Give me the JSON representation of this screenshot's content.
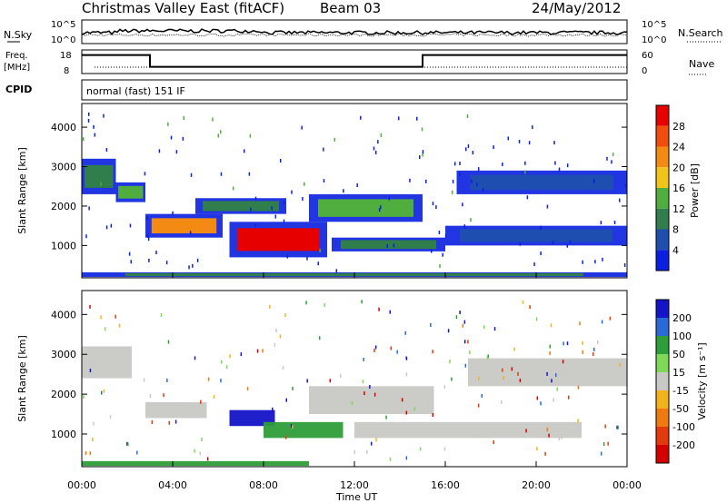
{
  "header": {
    "station_title": "Christmas Valley East (fitACF)",
    "beam": "Beam 03",
    "date": "24/May/2012"
  },
  "noise_panel": {
    "left_label": "N.Sky",
    "right_label": "N.Search",
    "left_ticks": [
      "10^5",
      "10^0"
    ],
    "right_ticks": [
      "10^5",
      "10^0"
    ]
  },
  "freq_panel": {
    "left_label": "Freq.",
    "left_unit": "[MHz]",
    "right_label": "Nave",
    "left_ticks": [
      "18",
      "8"
    ],
    "right_ticks": [
      "60",
      "0"
    ],
    "freq_steps_mhz": [
      {
        "from_h": 0,
        "to_h": 3,
        "value": 17
      },
      {
        "from_h": 3,
        "to_h": 15,
        "value": 12
      },
      {
        "from_h": 15,
        "to_h": 24,
        "value": 17
      }
    ]
  },
  "cpid": {
    "label": "CPID",
    "mode": "normal (fast) 151 IF"
  },
  "time_axis": {
    "label": "Time UT",
    "ticks": [
      "00:00",
      "04:00",
      "08:00",
      "12:00",
      "16:00",
      "20:00",
      "00:00"
    ]
  },
  "range_axis": {
    "label": "Slant Range [km]",
    "ticks": [
      "1000",
      "2000",
      "3000",
      "4000"
    ]
  },
  "power_colorbar": {
    "label": "Power [dB]",
    "ticks": [
      "4",
      "8",
      "12",
      "16",
      "20",
      "24",
      "28"
    ],
    "colors": [
      "#0a1fe0",
      "#1e4fb0",
      "#2f7e4c",
      "#4fae3d",
      "#f2c41a",
      "#f28a14",
      "#f24d0d",
      "#e60000"
    ]
  },
  "velocity_colorbar": {
    "label": "Velocity [m s⁻¹]",
    "ticks": [
      "200",
      "100",
      "50",
      "15",
      "-15",
      "-50",
      "-100",
      "-200"
    ],
    "colors": [
      "#1414c8",
      "#2a6ad8",
      "#2e9e3a",
      "#7ed957",
      "#c8c8c4",
      "#f2b21e",
      "#f07a10",
      "#e23a0a",
      "#d40000"
    ]
  },
  "chart_data": {
    "type": "heatmap",
    "x_range_hours": [
      0,
      24
    ],
    "y_range_km": [
      180,
      4600
    ],
    "panels": [
      {
        "name": "power",
        "features": [
          {
            "t0": 0.0,
            "t1": 1.5,
            "r0": 2300,
            "r1": 3200,
            "level": 2
          },
          {
            "t0": 1.5,
            "t1": 2.8,
            "r0": 2100,
            "r1": 2600,
            "level": 3
          },
          {
            "t0": 2.8,
            "t1": 6.2,
            "r0": 1200,
            "r1": 1800,
            "level": 5
          },
          {
            "t0": 6.5,
            "t1": 10.8,
            "r0": 700,
            "r1": 1600,
            "level": 7
          },
          {
            "t0": 5.0,
            "t1": 9.0,
            "r0": 1800,
            "r1": 2200,
            "level": 2
          },
          {
            "t0": 10.0,
            "t1": 15.0,
            "r0": 1600,
            "r1": 2300,
            "level": 3
          },
          {
            "t0": 11.0,
            "t1": 16.0,
            "r0": 850,
            "r1": 1200,
            "level": 2
          },
          {
            "t0": 16.0,
            "t1": 24.0,
            "r0": 1000,
            "r1": 1500,
            "level": 1
          },
          {
            "t0": 16.5,
            "t1": 24.0,
            "r0": 2300,
            "r1": 2900,
            "level": 1
          },
          {
            "t0": 0.0,
            "t1": 24.0,
            "r0": 200,
            "r1": 320,
            "level": 2
          }
        ]
      },
      {
        "name": "velocity",
        "features": [
          {
            "t0": 0.0,
            "t1": 2.2,
            "r0": 2400,
            "r1": 3200,
            "vel": 0
          },
          {
            "t0": 2.8,
            "t1": 5.5,
            "r0": 1400,
            "r1": 1800,
            "vel": 0
          },
          {
            "t0": 6.5,
            "t1": 8.5,
            "r0": 1200,
            "r1": 1600,
            "vel": 200
          },
          {
            "t0": 8.0,
            "t1": 11.5,
            "r0": 900,
            "r1": 1300,
            "vel": 50
          },
          {
            "t0": 10.0,
            "t1": 15.5,
            "r0": 1500,
            "r1": 2200,
            "vel": 0
          },
          {
            "t0": 12.0,
            "t1": 22.0,
            "r0": 900,
            "r1": 1300,
            "vel": 0
          },
          {
            "t0": 17.0,
            "t1": 24.0,
            "r0": 2200,
            "r1": 2900,
            "vel": 0
          },
          {
            "t0": 0.0,
            "t1": 10.0,
            "r0": 200,
            "r1": 320,
            "vel": 50
          }
        ]
      }
    ]
  }
}
